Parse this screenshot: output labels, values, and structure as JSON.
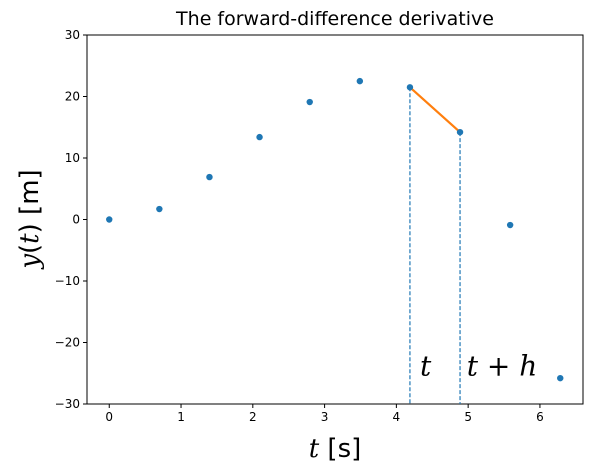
{
  "chart_data": {
    "type": "scatter",
    "title": "The forward-difference derivative",
    "xlabel": {
      "var": "t",
      "unit": " [s]"
    },
    "ylabel": {
      "var": "y",
      "arg": "t",
      "unit": " [m]"
    },
    "xlim": [
      -0.31,
      6.6
    ],
    "ylim": [
      -30,
      30
    ],
    "xticks": [
      0,
      1,
      2,
      3,
      4,
      5,
      6
    ],
    "yticks": [
      -30,
      -20,
      -10,
      0,
      10,
      20,
      30
    ],
    "ytick_labels": [
      "−30",
      "−20",
      "−10",
      "0",
      "10",
      "20",
      "30"
    ],
    "points": {
      "x": [
        0,
        0.698,
        1.396,
        2.094,
        2.793,
        3.491,
        4.189,
        4.887,
        5.585,
        6.283
      ],
      "y": [
        0,
        1.7,
        6.9,
        13.4,
        19.1,
        22.5,
        21.5,
        14.2,
        -0.9,
        -25.8
      ]
    },
    "colors": {
      "points": "#1f77b4",
      "segment": "#ff7f0e",
      "guides": "#1f77b4"
    },
    "segment": {
      "x": [
        4.189,
        4.887
      ],
      "y": [
        21.5,
        14.2
      ]
    },
    "guides": [
      {
        "x": 4.189,
        "y_top": 21.5
      },
      {
        "x": 4.887,
        "y_top": 14.2
      }
    ],
    "annotations": [
      {
        "text": "t",
        "x": 4.33,
        "y": -25
      },
      {
        "text": "t + h",
        "x": 4.98,
        "y": -25
      }
    ]
  }
}
